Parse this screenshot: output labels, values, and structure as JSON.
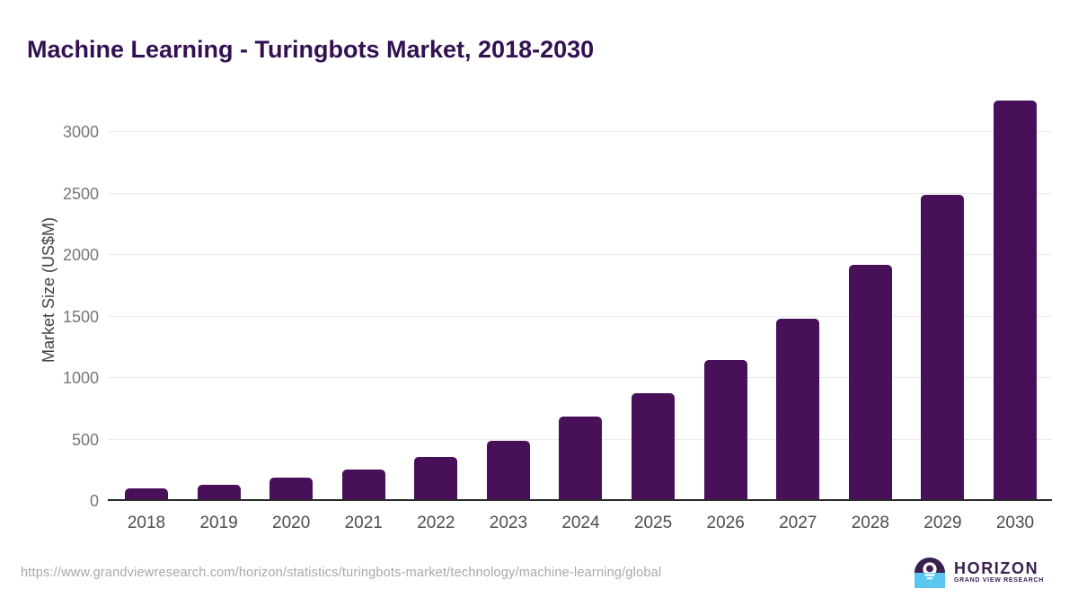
{
  "header": {
    "title": "Machine Learning - Turingbots Market, 2018-2030"
  },
  "chart_data": {
    "type": "bar",
    "title": "Machine Learning - Turingbots Market, 2018-2030",
    "categories": [
      "2018",
      "2019",
      "2020",
      "2021",
      "2022",
      "2023",
      "2024",
      "2025",
      "2026",
      "2027",
      "2028",
      "2029",
      "2030"
    ],
    "values": [
      100,
      135,
      190,
      253,
      355,
      492,
      685,
      875,
      1145,
      1480,
      1920,
      2490,
      3260
    ],
    "xlabel": "",
    "ylabel": "Market Size (US$M)",
    "yticks": [
      0,
      500,
      1000,
      1500,
      2000,
      2500,
      3000
    ],
    "ylim": [
      0,
      3420
    ],
    "grid": "horizontal-only",
    "legend": "none",
    "bar_color": "#471059"
  },
  "footer": {
    "source_url": "https://www.grandviewresearch.com/horizon/statistics/turingbots-market/technology/machine-learning/global",
    "logo": {
      "brand": "HORIZON",
      "tagline": "GRAND VIEW RESEARCH"
    }
  },
  "colors": {
    "title_text": "#321051",
    "bar": "#471059",
    "axis_line": "#2b2b2b",
    "gridline": "#eaeaea",
    "y_tick_text": "#777777",
    "x_tick_text": "#4d4d4d",
    "axis_label_text": "#404040",
    "footer_url_text": "#a8a8a8",
    "logo_purple": "#3b1f4e",
    "logo_blue": "#5bc7f0"
  }
}
